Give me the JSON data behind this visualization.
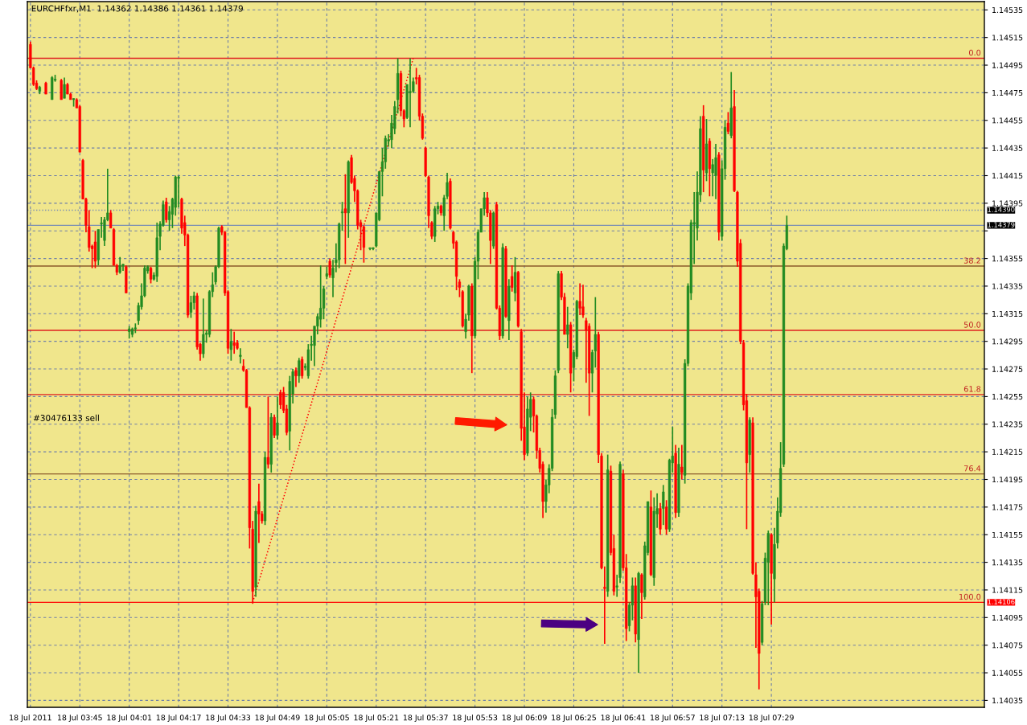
{
  "chart_data": {
    "type": "candlestick",
    "title": "EURCHFfxr,M1  1.14362 1.14386 1.14361 1.14379",
    "annotations": [
      "#30476133 sell",
      {
        "text": "0.0",
        "x": "2011-07-18T08:38",
        "y": 1.145
      },
      {
        "text": "38.2",
        "x": "2011-07-18T08:38",
        "y": 1.143495
      },
      {
        "text": "50.0",
        "x": "2011-07-18T08:38",
        "y": 1.14303
      },
      {
        "text": "61.8",
        "x": "2011-07-18T08:38",
        "y": 1.142565
      },
      {
        "text": "76.4",
        "x": "2011-07-18T08:38",
        "y": 1.14199
      },
      {
        "text": "100.0",
        "x": "2011-07-18T08:38",
        "y": 1.14106
      }
    ],
    "xlim": [
      "2011-07-18T03:28",
      "2011-07-18T08:38"
    ],
    "xticks": [
      {
        "value": "2011-07-18T03:29",
        "label": "18 Jul 2011"
      },
      {
        "value": "2011-07-18T03:45",
        "label": "18 Jul 03:45"
      },
      {
        "value": "2011-07-18T04:01",
        "label": "18 Jul 04:01"
      },
      {
        "value": "2011-07-18T04:17",
        "label": "18 Jul 04:17"
      },
      {
        "value": "2011-07-18T04:33",
        "label": "18 Jul 04:33"
      },
      {
        "value": "2011-07-18T04:49",
        "label": "18 Jul 04:49"
      },
      {
        "value": "2011-07-18T05:05",
        "label": "18 Jul 05:05"
      },
      {
        "value": "2011-07-18T05:21",
        "label": "18 Jul 05:21"
      },
      {
        "value": "2011-07-18T05:37",
        "label": "18 Jul 05:37"
      },
      {
        "value": "2011-07-18T05:53",
        "label": "18 Jul 05:53"
      },
      {
        "value": "2011-07-18T06:09",
        "label": "18 Jul 06:09"
      },
      {
        "value": "2011-07-18T06:25",
        "label": "18 Jul 06:25"
      },
      {
        "value": "2011-07-18T06:41",
        "label": "18 Jul 06:41"
      },
      {
        "value": "2011-07-18T06:57",
        "label": "18 Jul 06:57"
      },
      {
        "value": "2011-07-18T07:13",
        "label": "18 Jul 07:13"
      },
      {
        "value": "2011-07-18T07:29",
        "label": "18 Jul 07:29"
      }
    ],
    "ylim": [
      1.1403,
      1.14541
    ],
    "yticks": [
      1.14035,
      1.14055,
      1.14075,
      1.14095,
      1.14115,
      1.14135,
      1.14155,
      1.14175,
      1.14195,
      1.14215,
      1.14235,
      1.14255,
      1.14275,
      1.14295,
      1.14315,
      1.14335,
      1.14355,
      {
        "value": 1.14375,
        "label": null
      },
      1.14395,
      1.14415,
      1.14435,
      1.14455,
      1.14475,
      1.14495,
      1.14515,
      1.14535
    ],
    "grid": true,
    "ref_lines": [
      {
        "axis": "y",
        "value": 1.145,
        "color": "#e02020"
      },
      {
        "axis": "y",
        "value": 1.143495,
        "color": "#8b5a2b"
      },
      {
        "axis": "y",
        "value": 1.14303,
        "color": "#e02020"
      },
      {
        "axis": "y",
        "value": 1.142565,
        "color": "#e02020"
      },
      {
        "axis": "y",
        "value": 1.14199,
        "color": "#8b5a2b"
      },
      {
        "axis": "y",
        "value": 1.14106,
        "label": "1.14106",
        "color": "#ff0000"
      },
      {
        "axis": "y",
        "value": 1.14379,
        "label": "1.14379",
        "color": "#7b8fb4"
      },
      {
        "axis": "y",
        "value": 1.1439,
        "label": "1.14390",
        "color": "#7b8fb4",
        "line_style": "dotted"
      }
    ],
    "series": [
      {
        "type": "line",
        "x": [
          "2011-07-18T04:41",
          "2011-07-18T05:33"
        ],
        "values": [
          1.14106,
          1.145
        ],
        "color": "#ff0000",
        "line_style": "dotted"
      }
    ],
    "x": [
      "2011-07-18T03:29",
      "2011-07-18T03:30",
      "2011-07-18T03:31",
      "2011-07-18T03:32",
      "2011-07-18T03:34",
      "2011-07-18T03:36",
      "2011-07-18T03:37",
      "2011-07-18T03:39",
      "2011-07-18T03:40",
      "2011-07-18T03:41",
      "2011-07-18T03:42",
      "2011-07-18T03:43",
      "2011-07-18T03:44",
      "2011-07-18T03:45",
      "2011-07-18T03:46",
      "2011-07-18T03:47",
      "2011-07-18T03:48",
      "2011-07-18T03:49",
      "2011-07-18T03:50",
      "2011-07-18T03:51",
      "2011-07-18T03:52",
      "2011-07-18T03:53",
      "2011-07-18T03:54",
      "2011-07-18T03:55",
      "2011-07-18T03:56",
      "2011-07-18T03:57",
      "2011-07-18T03:58",
      "2011-07-18T03:59",
      "2011-07-18T04:00",
      "2011-07-18T04:01",
      "2011-07-18T04:02",
      "2011-07-18T04:03",
      "2011-07-18T04:04",
      "2011-07-18T04:05",
      "2011-07-18T04:06",
      "2011-07-18T04:07",
      "2011-07-18T04:08",
      "2011-07-18T04:09",
      "2011-07-18T04:10",
      "2011-07-18T04:11",
      "2011-07-18T04:12",
      "2011-07-18T04:13",
      "2011-07-18T04:14",
      "2011-07-18T04:15",
      "2011-07-18T04:16",
      "2011-07-18T04:17",
      "2011-07-18T04:18",
      "2011-07-18T04:19",
      "2011-07-18T04:20",
      "2011-07-18T04:21",
      "2011-07-18T04:22",
      "2011-07-18T04:23",
      "2011-07-18T04:24",
      "2011-07-18T04:25",
      "2011-07-18T04:26",
      "2011-07-18T04:27",
      "2011-07-18T04:28",
      "2011-07-18T04:29",
      "2011-07-18T04:30",
      "2011-07-18T04:31",
      "2011-07-18T04:32",
      "2011-07-18T04:33",
      "2011-07-18T04:34",
      "2011-07-18T04:35",
      "2011-07-18T04:36",
      "2011-07-18T04:37",
      "2011-07-18T04:38",
      "2011-07-18T04:39",
      "2011-07-18T04:40",
      "2011-07-18T04:41",
      "2011-07-18T04:42",
      "2011-07-18T04:43",
      "2011-07-18T04:44",
      "2011-07-18T04:45",
      "2011-07-18T04:46",
      "2011-07-18T04:47",
      "2011-07-18T04:48",
      "2011-07-18T04:49",
      "2011-07-18T04:50",
      "2011-07-18T04:51",
      "2011-07-18T04:52",
      "2011-07-18T04:53",
      "2011-07-18T04:54",
      "2011-07-18T04:55",
      "2011-07-18T04:56",
      "2011-07-18T04:57",
      "2011-07-18T04:58",
      "2011-07-18T04:59",
      "2011-07-18T05:00",
      "2011-07-18T05:01",
      "2011-07-18T05:02",
      "2011-07-18T05:03",
      "2011-07-18T05:04",
      "2011-07-18T05:05",
      "2011-07-18T05:06",
      "2011-07-18T05:07",
      "2011-07-18T05:08",
      "2011-07-18T05:09",
      "2011-07-18T05:10",
      "2011-07-18T05:11",
      "2011-07-18T05:12",
      "2011-07-18T05:13",
      "2011-07-18T05:14",
      "2011-07-18T05:15",
      "2011-07-18T05:16",
      "2011-07-18T05:17",
      "2011-07-18T05:19",
      "2011-07-18T05:20",
      "2011-07-18T05:21",
      "2011-07-18T05:22",
      "2011-07-18T05:23",
      "2011-07-18T05:24",
      "2011-07-18T05:25",
      "2011-07-18T05:26",
      "2011-07-18T05:27",
      "2011-07-18T05:28",
      "2011-07-18T05:29",
      "2011-07-18T05:30",
      "2011-07-18T05:31",
      "2011-07-18T05:32",
      "2011-07-18T05:33",
      "2011-07-18T05:34",
      "2011-07-18T05:35",
      "2011-07-18T05:36",
      "2011-07-18T05:37",
      "2011-07-18T05:38",
      "2011-07-18T05:39",
      "2011-07-18T05:40",
      "2011-07-18T05:41",
      "2011-07-18T05:42",
      "2011-07-18T05:43",
      "2011-07-18T05:44",
      "2011-07-18T05:45",
      "2011-07-18T05:46",
      "2011-07-18T05:47",
      "2011-07-18T05:48",
      "2011-07-18T05:49",
      "2011-07-18T05:50",
      "2011-07-18T05:51",
      "2011-07-18T05:52",
      "2011-07-18T05:53",
      "2011-07-18T05:54",
      "2011-07-18T05:55",
      "2011-07-18T05:56",
      "2011-07-18T05:57",
      "2011-07-18T05:58",
      "2011-07-18T05:59",
      "2011-07-18T06:00",
      "2011-07-18T06:01",
      "2011-07-18T06:02",
      "2011-07-18T06:03",
      "2011-07-18T06:04",
      "2011-07-18T06:05",
      "2011-07-18T06:06",
      "2011-07-18T06:07",
      "2011-07-18T06:08",
      "2011-07-18T06:09",
      "2011-07-18T06:10",
      "2011-07-18T06:11",
      "2011-07-18T06:12",
      "2011-07-18T06:13",
      "2011-07-18T06:14",
      "2011-07-18T06:15",
      "2011-07-18T06:16",
      "2011-07-18T06:17",
      "2011-07-18T06:18",
      "2011-07-18T06:19",
      "2011-07-18T06:20",
      "2011-07-18T06:21",
      "2011-07-18T06:22",
      "2011-07-18T06:23",
      "2011-07-18T06:24",
      "2011-07-18T06:25",
      "2011-07-18T06:26",
      "2011-07-18T06:27",
      "2011-07-18T06:28",
      "2011-07-18T06:29",
      "2011-07-18T06:30",
      "2011-07-18T06:31",
      "2011-07-18T06:32",
      "2011-07-18T06:33",
      "2011-07-18T06:34",
      "2011-07-18T06:35",
      "2011-07-18T06:36",
      "2011-07-18T06:37",
      "2011-07-18T06:38",
      "2011-07-18T06:39",
      "2011-07-18T06:40",
      "2011-07-18T06:41",
      "2011-07-18T06:42",
      "2011-07-18T06:43",
      "2011-07-18T06:44",
      "2011-07-18T06:45",
      "2011-07-18T06:46",
      "2011-07-18T06:47",
      "2011-07-18T06:48",
      "2011-07-18T06:49",
      "2011-07-18T06:50",
      "2011-07-18T06:51",
      "2011-07-18T06:52",
      "2011-07-18T06:53",
      "2011-07-18T06:54",
      "2011-07-18T06:55",
      "2011-07-18T06:56",
      "2011-07-18T06:57",
      "2011-07-18T06:58",
      "2011-07-18T06:59",
      "2011-07-18T07:00",
      "2011-07-18T07:01",
      "2011-07-18T07:02",
      "2011-07-18T07:03",
      "2011-07-18T07:04",
      "2011-07-18T07:05",
      "2011-07-18T07:06",
      "2011-07-18T07:07",
      "2011-07-18T07:08",
      "2011-07-18T07:09",
      "2011-07-18T07:10",
      "2011-07-18T07:11",
      "2011-07-18T07:12",
      "2011-07-18T07:13",
      "2011-07-18T07:14",
      "2011-07-18T07:15",
      "2011-07-18T07:16",
      "2011-07-18T07:17",
      "2011-07-18T07:18",
      "2011-07-18T07:19",
      "2011-07-18T07:20",
      "2011-07-18T07:21",
      "2011-07-18T07:22",
      "2011-07-18T07:23",
      "2011-07-18T07:24",
      "2011-07-18T07:25",
      "2011-07-18T07:26",
      "2011-07-18T07:27",
      "2011-07-18T07:28",
      "2011-07-18T07:29",
      "2011-07-18T07:30",
      "2011-07-18T07:31",
      "2011-07-18T07:32",
      "2011-07-18T07:33",
      "2011-07-18T07:34"
    ],
    "ohlc": [
      [
        1.1451,
        1.14512,
        1.14493,
        1.14493
      ],
      [
        1.14493,
        1.14494,
        1.1448,
        1.14481
      ],
      [
        1.14482,
        1.14484,
        1.14477,
        1.14478
      ],
      [
        1.14476,
        1.1448,
        1.14474,
        1.14479
      ],
      [
        1.14482,
        1.14483,
        1.14474,
        1.14474
      ],
      [
        1.1447,
        1.14487,
        1.1447,
        1.14486
      ],
      [
        1.14484,
        1.14488,
        1.14483,
        1.14484
      ],
      [
        1.14484,
        1.14485,
        1.1447,
        1.1447
      ],
      [
        1.14471,
        1.14486,
        1.14471,
        1.14481
      ],
      [
        1.14481,
        1.14482,
        1.14474,
        1.14474
      ],
      [
        1.14474,
        1.14475,
        1.1447,
        1.1447
      ],
      [
        1.1447,
        1.14471,
        1.14465,
        1.1447
      ],
      [
        1.1447,
        1.14471,
        1.14464,
        1.14464
      ],
      [
        1.14465,
        1.14466,
        1.14432,
        1.14432
      ],
      [
        1.14426,
        1.14427,
        1.14398,
        1.14398
      ],
      [
        1.14398,
        1.14399,
        1.14374,
        1.14379
      ],
      [
        1.14378,
        1.1439,
        1.1436,
        1.14363
      ],
      [
        1.14364,
        1.14365,
        1.14348,
        1.14362
      ],
      [
        1.14367,
        1.14375,
        1.14348,
        1.14353
      ],
      [
        1.14354,
        1.14376,
        1.1435,
        1.14376
      ],
      [
        1.1438,
        1.14385,
        1.1437,
        1.1438
      ],
      [
        1.14368,
        1.14385,
        1.14364,
        1.14383
      ],
      [
        1.14383,
        1.1442,
        1.14382,
        1.14388
      ],
      [
        1.14388,
        1.1439,
        1.14377,
        1.14377
      ],
      [
        1.14376,
        1.14377,
        1.1435,
        1.1435
      ],
      [
        1.1435,
        1.14351,
        1.14343,
        1.14345
      ],
      [
        1.14345,
        1.14356,
        1.14344,
        1.1435
      ],
      [
        1.1435,
        1.14351,
        1.14346,
        1.1435
      ],
      [
        1.14349,
        1.1435,
        1.1433,
        1.1433
      ],
      [
        1.14302,
        1.14306,
        1.14297,
        1.14304
      ],
      [
        1.143,
        1.14305,
        1.14298,
        1.14304
      ],
      [
        1.14304,
        1.14308,
        1.14301,
        1.14304
      ],
      [
        1.1431,
        1.14323,
        1.14307,
        1.14321
      ],
      [
        1.1432,
        1.14337,
        1.14318,
        1.14328
      ],
      [
        1.14328,
        1.1435,
        1.14327,
        1.14348
      ],
      [
        1.14346,
        1.1435,
        1.14344,
        1.14349
      ],
      [
        1.14348,
        1.14349,
        1.14337,
        1.1434
      ],
      [
        1.1434,
        1.14345,
        1.14339,
        1.14343
      ],
      [
        1.14342,
        1.14381,
        1.14338,
        1.1437
      ],
      [
        1.14371,
        1.14382,
        1.14361,
        1.1438
      ],
      [
        1.14379,
        1.14397,
        1.14378,
        1.14394
      ],
      [
        1.14396,
        1.14399,
        1.14381,
        1.14383
      ],
      [
        1.14383,
        1.14393,
        1.14375,
        1.14389
      ],
      [
        1.14387,
        1.14399,
        1.14377,
        1.14398
      ],
      [
        1.14392,
        1.14415,
        1.14386,
        1.14414
      ],
      [
        1.14413,
        1.14415,
        1.14392,
        1.14414
      ],
      [
        1.14398,
        1.14399,
        1.14373,
        1.14377
      ],
      [
        1.14381,
        1.14386,
        1.14364,
        1.14372
      ],
      [
        1.14372,
        1.14373,
        1.14312,
        1.14314
      ],
      [
        1.14316,
        1.14328,
        1.14312,
        1.14323
      ],
      [
        1.14323,
        1.14331,
        1.14318,
        1.14328
      ],
      [
        1.14328,
        1.1433,
        1.14289,
        1.14291
      ],
      [
        1.14293,
        1.14294,
        1.14281,
        1.14286
      ],
      [
        1.14286,
        1.14326,
        1.14283,
        1.143
      ],
      [
        1.143,
        1.14303,
        1.14294,
        1.14301
      ],
      [
        1.143,
        1.14332,
        1.14298,
        1.14331
      ],
      [
        1.14331,
        1.14345,
        1.14327,
        1.14336
      ],
      [
        1.14338,
        1.1435,
        1.14336,
        1.14349
      ],
      [
        1.14349,
        1.14378,
        1.14348,
        1.14377
      ],
      [
        1.14378,
        1.14379,
        1.14372,
        1.14374
      ],
      [
        1.14374,
        1.14375,
        1.14328,
        1.1433
      ],
      [
        1.14331,
        1.14332,
        1.14286,
        1.1429
      ],
      [
        1.14289,
        1.14304,
        1.14281,
        1.14295
      ],
      [
        1.14294,
        1.14302,
        1.14286,
        1.14292
      ],
      [
        1.14294,
        1.14296,
        1.14289,
        1.1429
      ],
      [
        1.14284,
        1.1429,
        1.14279,
        1.14285
      ],
      [
        1.14277,
        1.14282,
        1.14273,
        1.14274
      ],
      [
        1.14274,
        1.14275,
        1.14247,
        1.14247
      ],
      [
        1.14247,
        1.14248,
        1.14145,
        1.1416
      ],
      [
        1.14159,
        1.14165,
        1.14105,
        1.14114
      ],
      [
        1.14117,
        1.14176,
        1.1411,
        1.14172
      ],
      [
        1.14179,
        1.14192,
        1.14149,
        1.1417
      ],
      [
        1.1417,
        1.14172,
        1.14163,
        1.14165
      ],
      [
        1.14165,
        1.14215,
        1.14162,
        1.14211
      ],
      [
        1.14211,
        1.14255,
        1.14203,
        1.14206
      ],
      [
        1.14206,
        1.14243,
        1.142,
        1.1424
      ],
      [
        1.1424,
        1.14242,
        1.14225,
        1.14227
      ],
      [
        1.14227,
        1.14255,
        1.14224,
        1.14236
      ],
      [
        1.14258,
        1.1426,
        1.14246,
        1.14249
      ],
      [
        1.14258,
        1.14262,
        1.14243,
        1.14245
      ],
      [
        1.14246,
        1.14249,
        1.14227,
        1.14229
      ],
      [
        1.1423,
        1.1427,
        1.14216,
        1.14266
      ],
      [
        1.14257,
        1.14275,
        1.1425,
        1.14273
      ],
      [
        1.14274,
        1.14276,
        1.14262,
        1.1427
      ],
      [
        1.1427,
        1.14283,
        1.14265,
        1.14281
      ],
      [
        1.14282,
        1.14284,
        1.14268,
        1.1427
      ],
      [
        1.14276,
        1.14279,
        1.14274,
        1.14277
      ],
      [
        1.1427,
        1.14293,
        1.14268,
        1.14289
      ],
      [
        1.14292,
        1.14299,
        1.14281,
        1.14293
      ],
      [
        1.14292,
        1.14306,
        1.14277,
        1.14306
      ],
      [
        1.14306,
        1.14315,
        1.143,
        1.14313
      ],
      [
        1.14311,
        1.1435,
        1.14305,
        1.14319
      ],
      [
        1.14319,
        1.14335,
        1.14311,
        1.14333
      ],
      [
        1.14342,
        1.14349,
        1.1434,
        1.14344
      ],
      [
        1.14353,
        1.14355,
        1.14341,
        1.14343
      ],
      [
        1.14341,
        1.14354,
        1.14327,
        1.14348
      ],
      [
        1.14352,
        1.14366,
        1.14345,
        1.14354
      ],
      [
        1.14354,
        1.14381,
        1.14348,
        1.1438
      ],
      [
        1.14388,
        1.14396,
        1.14375,
        1.14388
      ],
      [
        1.14391,
        1.14416,
        1.14351,
        1.14388
      ],
      [
        1.14388,
        1.14426,
        1.1437,
        1.14425
      ],
      [
        1.14428,
        1.1443,
        1.14409,
        1.1441
      ],
      [
        1.14413,
        1.14415,
        1.14396,
        1.14404
      ],
      [
        1.14404,
        1.14405,
        1.14376,
        1.14379
      ],
      [
        1.14381,
        1.14383,
        1.14361,
        1.14378
      ],
      [
        1.14378,
        1.14379,
        1.14352,
        1.14363
      ],
      [
        1.14362,
        1.14362,
        1.14361,
        1.14362
      ],
      [
        1.14362,
        1.14363,
        1.14361,
        1.14362
      ],
      [
        1.14364,
        1.14388,
        1.14363,
        1.14388
      ],
      [
        1.14383,
        1.14418,
        1.14382,
        1.14418
      ],
      [
        1.14418,
        1.14435,
        1.144,
        1.14425
      ],
      [
        1.14425,
        1.14444,
        1.1442,
        1.14442
      ],
      [
        1.1444,
        1.14445,
        1.14436,
        1.14441
      ],
      [
        1.14441,
        1.14459,
        1.14435,
        1.14453
      ],
      [
        1.14449,
        1.14469,
        1.14445,
        1.14465
      ],
      [
        1.1447,
        1.145,
        1.1446,
        1.14489
      ],
      [
        1.14489,
        1.14491,
        1.14458,
        1.14462
      ],
      [
        1.14462,
        1.14463,
        1.1445,
        1.14456
      ],
      [
        1.14457,
        1.14481,
        1.14456,
        1.14481
      ],
      [
        1.14475,
        1.145,
        1.1445,
        1.14476
      ],
      [
        1.14476,
        1.14486,
        1.14475,
        1.14483
      ],
      [
        1.14486,
        1.14493,
        1.14481,
        1.14485
      ],
      [
        1.14486,
        1.14488,
        1.14455,
        1.14458
      ],
      [
        1.14458,
        1.1446,
        1.14441,
        1.14442
      ],
      [
        1.14435,
        1.14436,
        1.14414,
        1.14415
      ],
      [
        1.14414,
        1.14415,
        1.14377,
        1.14386
      ],
      [
        1.14381,
        1.14382,
        1.14369,
        1.14371
      ],
      [
        1.14371,
        1.14393,
        1.14367,
        1.14391
      ],
      [
        1.14391,
        1.14396,
        1.14387,
        1.14393
      ],
      [
        1.14393,
        1.14394,
        1.14386,
        1.14388
      ],
      [
        1.14386,
        1.14401,
        1.14375,
        1.14399
      ],
      [
        1.144,
        1.14417,
        1.14398,
        1.1441
      ],
      [
        1.14411,
        1.14413,
        1.14376,
        1.14377
      ],
      [
        1.14374,
        1.14375,
        1.14362,
        1.14366
      ],
      [
        1.14367,
        1.14368,
        1.14332,
        1.14342
      ],
      [
        1.14338,
        1.1434,
        1.14327,
        1.14334
      ],
      [
        1.14331,
        1.14332,
        1.14305,
        1.14306
      ],
      [
        1.14302,
        1.14315,
        1.14297,
        1.14311
      ],
      [
        1.14314,
        1.14336,
        1.1431,
        1.14335
      ],
      [
        1.14335,
        1.14337,
        1.14272,
        1.14299
      ],
      [
        1.14299,
        1.14356,
        1.14297,
        1.14353
      ],
      [
        1.14353,
        1.14376,
        1.1434,
        1.14374
      ],
      [
        1.14374,
        1.14391,
        1.14374,
        1.14391
      ],
      [
        1.14391,
        1.14403,
        1.14386,
        1.14399
      ],
      [
        1.14399,
        1.14403,
        1.14385,
        1.14388
      ],
      [
        1.14388,
        1.1439,
        1.14351,
        1.14368
      ],
      [
        1.14364,
        1.14389,
        1.14362,
        1.14388
      ],
      [
        1.14394,
        1.14396,
        1.14318,
        1.14319
      ],
      [
        1.14319,
        1.14321,
        1.14296,
        1.14299
      ],
      [
        1.14299,
        1.14366,
        1.14297,
        1.14363
      ],
      [
        1.14362,
        1.14364,
        1.14312,
        1.14313
      ],
      [
        1.1431,
        1.1434,
        1.14296,
        1.14335
      ],
      [
        1.14342,
        1.1435,
        1.14331,
        1.14334
      ],
      [
        1.1433,
        1.14356,
        1.14324,
        1.14345
      ],
      [
        1.14345,
        1.14346,
        1.14305,
        1.14306
      ],
      [
        1.14302,
        1.14304,
        1.14223,
        1.14232
      ],
      [
        1.14233,
        1.14258,
        1.14209,
        1.14213
      ],
      [
        1.14214,
        1.14255,
        1.14212,
        1.14246
      ],
      [
        1.1424,
        1.14258,
        1.1423,
        1.14253
      ],
      [
        1.14253,
        1.14255,
        1.14229,
        1.14241
      ],
      [
        1.14241,
        1.14242,
        1.1421,
        1.14216
      ],
      [
        1.14216,
        1.14218,
        1.142,
        1.14203
      ],
      [
        1.14206,
        1.14208,
        1.14167,
        1.14179
      ],
      [
        1.14179,
        1.14195,
        1.14171,
        1.14191
      ],
      [
        1.14191,
        1.14206,
        1.14185,
        1.14203
      ],
      [
        1.14203,
        1.14246,
        1.14201,
        1.1424
      ],
      [
        1.14242,
        1.14274,
        1.14239,
        1.1427
      ],
      [
        1.14274,
        1.14346,
        1.14272,
        1.14344
      ],
      [
        1.14344,
        1.14346,
        1.14325,
        1.14327
      ],
      [
        1.14327,
        1.1433,
        1.143,
        1.143
      ],
      [
        1.143,
        1.1432,
        1.1429,
        1.14307
      ],
      [
        1.14307,
        1.14309,
        1.14258,
        1.14272
      ],
      [
        1.14276,
        1.14289,
        1.14266,
        1.14287
      ],
      [
        1.14284,
        1.14325,
        1.14282,
        1.14324
      ],
      [
        1.14324,
        1.14337,
        1.14314,
        1.14319
      ],
      [
        1.1432,
        1.14336,
        1.14312,
        1.14314
      ],
      [
        1.1431,
        1.14312,
        1.14265,
        1.14303
      ],
      [
        1.14306,
        1.14308,
        1.14241,
        1.14272
      ],
      [
        1.14272,
        1.14289,
        1.14258,
        1.14287
      ],
      [
        1.14288,
        1.14327,
        1.14276,
        1.143
      ],
      [
        1.143,
        1.14302,
        1.14207,
        1.14213
      ],
      [
        1.14212,
        1.14214,
        1.1413,
        1.14131
      ],
      [
        1.14117,
        1.14132,
        1.14076,
        1.14116
      ],
      [
        1.14114,
        1.14213,
        1.1411,
        1.14202
      ],
      [
        1.14201,
        1.14205,
        1.1414,
        1.14142
      ],
      [
        1.14145,
        1.14155,
        1.14111,
        1.14114
      ],
      [
        1.14117,
        1.14126,
        1.1411,
        1.14118
      ],
      [
        1.14124,
        1.14208,
        1.1412,
        1.14206
      ],
      [
        1.14199,
        1.14202,
        1.14129,
        1.14131
      ],
      [
        1.14131,
        1.14141,
        1.14078,
        1.14087
      ],
      [
        1.14089,
        1.14106,
        1.14085,
        1.14104
      ],
      [
        1.14104,
        1.14124,
        1.14093,
        1.14118
      ],
      [
        1.14118,
        1.14124,
        1.14077,
        1.14083
      ],
      [
        1.14079,
        1.14128,
        1.14055,
        1.14127
      ],
      [
        1.14126,
        1.14127,
        1.14094,
        1.14113
      ],
      [
        1.1411,
        1.1415,
        1.14108,
        1.14147
      ],
      [
        1.14142,
        1.14179,
        1.1414,
        1.14179
      ],
      [
        1.14175,
        1.14187,
        1.14125,
        1.14126
      ],
      [
        1.14124,
        1.14182,
        1.14118,
        1.14172
      ],
      [
        1.1417,
        1.14185,
        1.1416,
        1.14174
      ],
      [
        1.14174,
        1.14178,
        1.14155,
        1.14159
      ],
      [
        1.14174,
        1.14191,
        1.14162,
        1.14186
      ],
      [
        1.14175,
        1.1418,
        1.14155,
        1.14159
      ],
      [
        1.14159,
        1.1421,
        1.14157,
        1.14209
      ],
      [
        1.14207,
        1.14233,
        1.142,
        1.14212
      ],
      [
        1.14214,
        1.1422,
        1.14167,
        1.14171
      ],
      [
        1.14171,
        1.14218,
        1.14168,
        1.14206
      ],
      [
        1.14204,
        1.1422,
        1.14195,
        1.142
      ],
      [
        1.14198,
        1.14282,
        1.14192,
        1.14279
      ],
      [
        1.14279,
        1.14337,
        1.14277,
        1.14335
      ],
      [
        1.1433,
        1.14383,
        1.14325,
        1.14381
      ],
      [
        1.1438,
        1.14403,
        1.14351,
        1.14381
      ],
      [
        1.14377,
        1.14418,
        1.14368,
        1.14403
      ],
      [
        1.14401,
        1.14458,
        1.14396,
        1.14449
      ],
      [
        1.14458,
        1.14466,
        1.14403,
        1.14419
      ],
      [
        1.14417,
        1.14456,
        1.14411,
        1.14438
      ],
      [
        1.1444,
        1.14442,
        1.144,
        1.1442
      ],
      [
        1.14417,
        1.14427,
        1.144,
        1.14423
      ],
      [
        1.14415,
        1.14438,
        1.14398,
        1.14428
      ],
      [
        1.1443,
        1.14432,
        1.14368,
        1.14374
      ],
      [
        1.14371,
        1.14426,
        1.14368,
        1.1442
      ],
      [
        1.1442,
        1.14455,
        1.14412,
        1.1445
      ],
      [
        1.14453,
        1.14461,
        1.14445,
        1.14447
      ],
      [
        1.14444,
        1.1449,
        1.14442,
        1.14464
      ],
      [
        1.14465,
        1.14477,
        1.14403,
        1.14404
      ],
      [
        1.14403,
        1.14404,
        1.14349,
        1.14353
      ],
      [
        1.14366,
        1.14369,
        1.14293,
        1.14295
      ],
      [
        1.14294,
        1.14296,
        1.14245,
        1.14249
      ],
      [
        1.14252,
        1.14257,
        1.14159,
        1.14207
      ],
      [
        1.14213,
        1.1424,
        1.142,
        1.14238
      ],
      [
        1.14236,
        1.1424,
        1.14126,
        1.14127
      ],
      [
        1.14126,
        1.14135,
        1.14073,
        1.1411
      ],
      [
        1.14114,
        1.14116,
        1.14043,
        1.14069
      ],
      [
        1.14077,
        1.14107,
        1.14075,
        1.14105
      ],
      [
        1.14106,
        1.14142,
        1.14104,
        1.14138
      ],
      [
        1.14135,
        1.14158,
        1.14104,
        1.14156
      ],
      [
        1.14155,
        1.14156,
        1.1409,
        1.14127
      ],
      [
        1.14123,
        1.1416,
        1.14106,
        1.14148
      ],
      [
        1.14149,
        1.14182,
        1.14145,
        1.14172
      ],
      [
        1.14171,
        1.14222,
        1.14168,
        1.14203
      ],
      [
        1.14206,
        1.14366,
        1.14204,
        1.14364
      ],
      [
        1.14362,
        1.14386,
        1.14361,
        1.14379
      ]
    ]
  }
}
